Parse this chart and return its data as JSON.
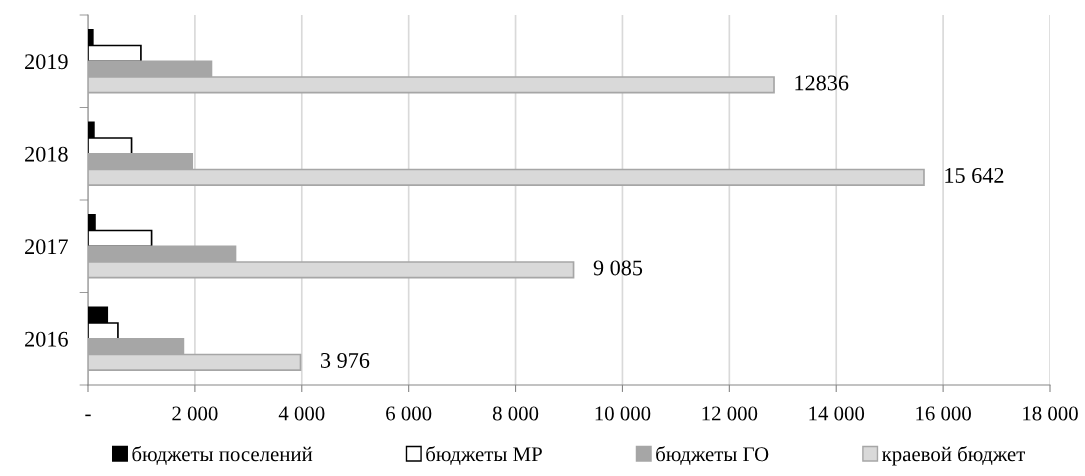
{
  "chart_data": {
    "type": "bar",
    "orientation": "horizontal",
    "categories": [
      "2019",
      "2018",
      "2017",
      "2016"
    ],
    "series": [
      {
        "name": "бюджеты поселений",
        "color": "#000000",
        "values": [
          90,
          110,
          130,
          360
        ]
      },
      {
        "name": "бюджеты МР",
        "color": "#ffffff",
        "values": [
          990,
          815,
          1190,
          560
        ]
      },
      {
        "name": "бюджеты ГО",
        "color": "#a6a6a6",
        "values": [
          2310,
          1950,
          2760,
          1785
        ]
      },
      {
        "name": "краевой бюджет",
        "color": "#d9d9d9",
        "values": [
          12836,
          15642,
          9085,
          3976
        ],
        "value_labels": [
          "12836",
          "15 642",
          "9 085",
          "3 976"
        ]
      }
    ],
    "xlim": [
      0,
      18000
    ],
    "xticks": [
      {
        "value": 0,
        "label": "-"
      },
      {
        "value": 2000,
        "label": "2 000"
      },
      {
        "value": 4000,
        "label": "4 000"
      },
      {
        "value": 6000,
        "label": "6 000"
      },
      {
        "value": 8000,
        "label": "8 000"
      },
      {
        "value": 10000,
        "label": "10 000"
      },
      {
        "value": 12000,
        "label": "12 000"
      },
      {
        "value": 14000,
        "label": "14 000"
      },
      {
        "value": 16000,
        "label": "16 000"
      },
      {
        "value": 18000,
        "label": "18 000"
      }
    ],
    "grid": "x",
    "legend": "bottom"
  }
}
